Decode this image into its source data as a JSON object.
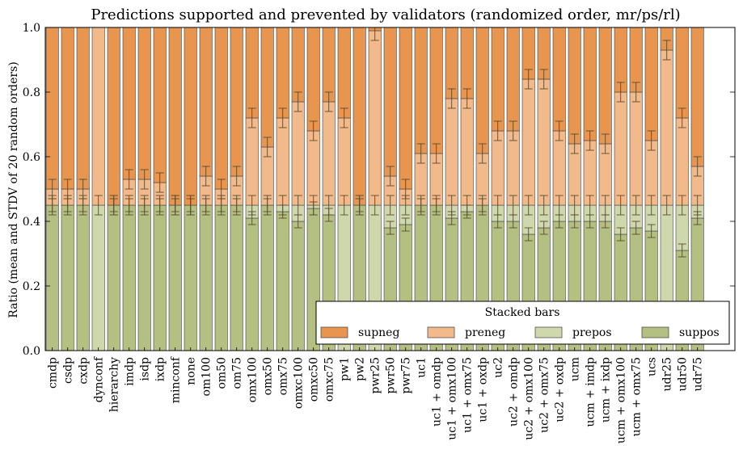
{
  "chart_data": {
    "type": "bar",
    "stacked": true,
    "title": "Predictions supported and prevented by validators (randomized order, mr/ps/rl)",
    "xlabel": "",
    "ylabel": "Ratio (mean and STDV of 20 random orders)",
    "ylim": [
      0.0,
      1.0
    ],
    "yticks": [
      "0.0",
      "0.2",
      "0.4",
      "0.6",
      "0.8",
      "1.0"
    ],
    "legend": {
      "title": "Stacked bars",
      "placement": "lower-right"
    },
    "colors": {
      "supneg": "#e8954f",
      "preneg": "#f2b98a",
      "prepos": "#cfd8ad",
      "suppos": "#b3c081",
      "error": "#5a4a2a"
    },
    "categories": [
      "cmdp",
      "csdp",
      "cxdp",
      "dynconf",
      "hierarchy",
      "imdp",
      "isdp",
      "ixdp",
      "minconf",
      "none",
      "om100",
      "om50",
      "om75",
      "omx100",
      "omx50",
      "omx75",
      "omxc100",
      "omxc50",
      "omxc75",
      "pw1",
      "pw2",
      "pwr25",
      "pwr50",
      "pwr75",
      "uc1",
      "uc1 + omdp",
      "uc1 + omx100",
      "uc1 + omx75",
      "uc1 + oxdp",
      "uc2",
      "uc2 + omdp",
      "uc2 + omx100",
      "uc2 + omx75",
      "uc2 + oxdp",
      "ucm",
      "ucm + imdp",
      "ucm + ixdp",
      "ucm + omx100",
      "ucm + omx75",
      "ucs",
      "udr25",
      "udr50",
      "udr75"
    ],
    "series": [
      {
        "name": "suppos",
        "values": [
          0.45,
          0.45,
          0.45,
          0.0,
          0.45,
          0.45,
          0.45,
          0.45,
          0.45,
          0.45,
          0.45,
          0.45,
          0.45,
          0.41,
          0.45,
          0.43,
          0.4,
          0.44,
          0.42,
          0.0,
          0.45,
          0.0,
          0.38,
          0.39,
          0.45,
          0.45,
          0.41,
          0.43,
          0.45,
          0.4,
          0.4,
          0.36,
          0.38,
          0.4,
          0.4,
          0.4,
          0.4,
          0.36,
          0.38,
          0.37,
          0.0,
          0.31,
          0.41
        ]
      },
      {
        "name": "prepos",
        "values": [
          0.0,
          0.0,
          0.0,
          0.45,
          0.0,
          0.0,
          0.0,
          0.0,
          0.0,
          0.0,
          0.0,
          0.0,
          0.0,
          0.04,
          0.0,
          0.02,
          0.05,
          0.01,
          0.03,
          0.45,
          0.0,
          0.45,
          0.07,
          0.06,
          0.0,
          0.0,
          0.04,
          0.02,
          0.0,
          0.05,
          0.05,
          0.09,
          0.07,
          0.05,
          0.05,
          0.05,
          0.05,
          0.09,
          0.07,
          0.08,
          0.45,
          0.14,
          0.04
        ]
      },
      {
        "name": "preneg",
        "values": [
          0.05,
          0.05,
          0.05,
          0.55,
          0.0,
          0.08,
          0.08,
          0.07,
          0.0,
          0.0,
          0.09,
          0.05,
          0.09,
          0.27,
          0.18,
          0.27,
          0.32,
          0.23,
          0.32,
          0.27,
          0.0,
          0.54,
          0.09,
          0.05,
          0.16,
          0.16,
          0.33,
          0.33,
          0.16,
          0.23,
          0.23,
          0.39,
          0.39,
          0.23,
          0.19,
          0.2,
          0.19,
          0.35,
          0.35,
          0.2,
          0.48,
          0.27,
          0.12
        ]
      },
      {
        "name": "supneg",
        "values": [
          0.5,
          0.5,
          0.5,
          0.0,
          0.55,
          0.47,
          0.47,
          0.48,
          0.55,
          0.55,
          0.46,
          0.5,
          0.46,
          0.28,
          0.37,
          0.28,
          0.23,
          0.32,
          0.23,
          0.28,
          0.55,
          0.01,
          0.46,
          0.5,
          0.39,
          0.39,
          0.22,
          0.22,
          0.39,
          0.32,
          0.32,
          0.16,
          0.16,
          0.32,
          0.36,
          0.35,
          0.36,
          0.2,
          0.2,
          0.35,
          0.07,
          0.28,
          0.43
        ]
      }
    ]
  }
}
